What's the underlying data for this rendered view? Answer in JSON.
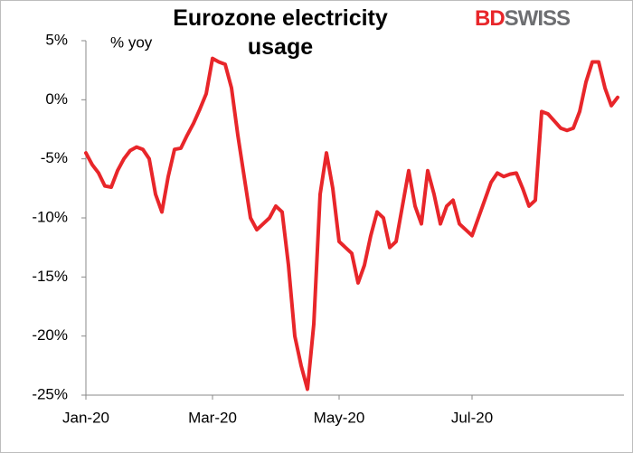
{
  "chart_data": {
    "type": "line",
    "title": "Eurozone electricity usage",
    "annotation": "% yoy",
    "brand": [
      "BD",
      "SWISS"
    ],
    "categories": [
      "Jan-20",
      null,
      null,
      null,
      null,
      null,
      null,
      null,
      null,
      null,
      null,
      null,
      null,
      null,
      null,
      null,
      null,
      null,
      null,
      null,
      "Mar-20",
      null,
      null,
      null,
      null,
      null,
      null,
      null,
      null,
      null,
      null,
      null,
      null,
      null,
      null,
      null,
      null,
      null,
      null,
      null,
      "May-20",
      null,
      null,
      null,
      null,
      null,
      null,
      null,
      null,
      null,
      null,
      null,
      null,
      null,
      null,
      null,
      null,
      null,
      null,
      null,
      null,
      "Jul-20",
      null,
      null,
      null,
      null,
      null,
      null,
      null,
      null,
      null,
      null,
      null,
      null,
      null,
      null,
      null,
      null,
      null,
      null,
      null,
      null,
      null,
      null,
      null
    ],
    "series": [
      {
        "name": "Eurozone electricity usage",
        "color": "#e8262a",
        "values": [
          -4.5,
          -5.5,
          -6.2,
          -7.3,
          -7.4,
          -6.0,
          -5.0,
          -4.3,
          -4.0,
          -4.2,
          -5.0,
          -8.0,
          -9.5,
          -6.5,
          -4.2,
          -4.1,
          -3.0,
          -2.0,
          -0.8,
          0.5,
          3.5,
          3.2,
          3.0,
          1.0,
          -3.0,
          -6.5,
          -10.0,
          -11.0,
          -10.5,
          -10.0,
          -9.0,
          -9.5,
          -14.0,
          -20.0,
          -22.5,
          -24.5,
          -19.0,
          -8.0,
          -4.5,
          -7.5,
          -12.0,
          -12.5,
          -13.0,
          -15.5,
          -14.0,
          -11.5,
          -9.5,
          -10.0,
          -12.5,
          -12.0,
          -9.0,
          -6.0,
          -9.0,
          -10.5,
          -6.0,
          -8.0,
          -10.5,
          -9.0,
          -8.5,
          -10.5,
          -11.0,
          -11.5,
          -10.0,
          -8.5,
          -7.0,
          -6.2,
          -6.5,
          -6.3,
          -6.2,
          -7.5,
          -9.0,
          -8.5,
          -1.0,
          -1.2,
          -1.8,
          -2.4,
          -2.6,
          -2.4,
          -1.0,
          1.5,
          3.2,
          3.2,
          1.0,
          -0.5,
          0.2
        ]
      }
    ],
    "ylim": [
      -25,
      5
    ],
    "yticks": [
      {
        "value": -25,
        "label": "-25%"
      },
      {
        "value": -20,
        "label": "-20%"
      },
      {
        "value": -15,
        "label": "-15%"
      },
      {
        "value": -10,
        "label": "-10%"
      },
      {
        "value": -5,
        "label": "-5%"
      },
      {
        "value": 0,
        "label": "0%"
      },
      {
        "value": 5,
        "label": "5%"
      }
    ],
    "grid": false
  }
}
